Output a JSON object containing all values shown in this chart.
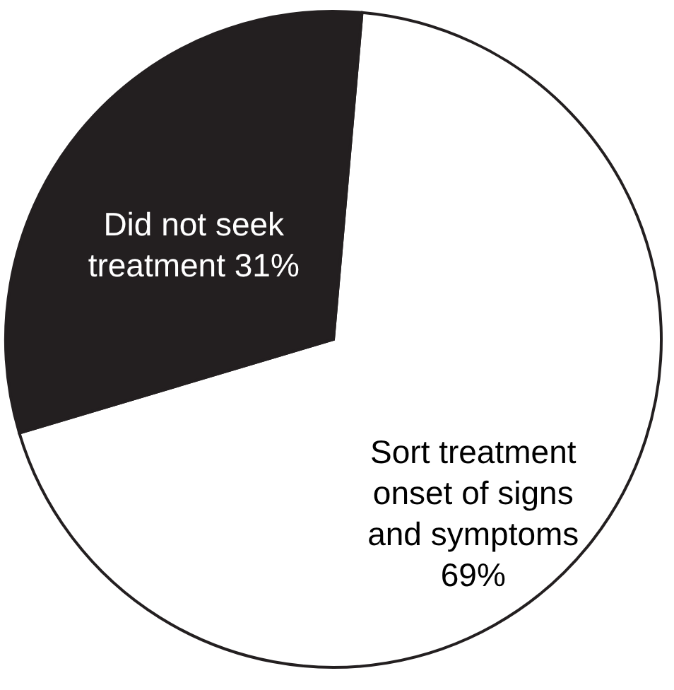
{
  "chart_data": {
    "type": "pie",
    "categories": [
      "Sort treatment onset of signs and symptoms",
      "Did not seek treatment"
    ],
    "values": [
      69,
      31
    ],
    "colors": [
      "#ffffff",
      "#231f20"
    ],
    "value_labels": [
      "69%",
      "31%"
    ]
  }
}
